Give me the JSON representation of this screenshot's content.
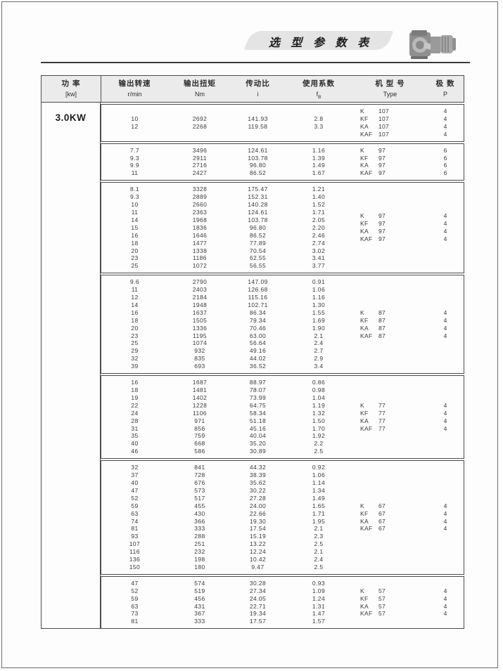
{
  "header": {
    "title": "选 型 参 数 表"
  },
  "table": {
    "power": {
      "label_zh": "功 率",
      "label_unit": "[kw]",
      "value": "3.0KW"
    },
    "header": {
      "cols": [
        {
          "zh": "输出转速",
          "en": "r/min"
        },
        {
          "zh": "输出扭矩",
          "en": "Nm"
        },
        {
          "zh": "传动比",
          "en": "i"
        },
        {
          "zh": "使用系数",
          "en": "f",
          "en_sub": "B"
        },
        {
          "zh": "机 型 号",
          "en": "Type"
        },
        {
          "zh": "极 数",
          "en": "P"
        }
      ]
    },
    "sections": [
      {
        "rows": [
          [
            "10",
            "2692",
            "141.93",
            "2.8"
          ],
          [
            "12",
            "2268",
            "119.58",
            "3.3"
          ]
        ],
        "types": [
          {
            "l": "K",
            "n": "107"
          },
          {
            "l": "KF",
            "n": "107"
          },
          {
            "l": "KA",
            "n": "107"
          },
          {
            "l": "KAF",
            "n": "107"
          }
        ],
        "poles": [
          "4",
          "4",
          "4",
          "4"
        ]
      },
      {
        "rows": [
          [
            "7.7",
            "3496",
            "124.61",
            "1.16"
          ],
          [
            "9.3",
            "2911",
            "103.78",
            "1.39"
          ],
          [
            "9.9",
            "2716",
            "96.80",
            "1.49"
          ],
          [
            "11",
            "2427",
            "86.52",
            "1.67"
          ]
        ],
        "types": [
          {
            "l": "K",
            "n": "97"
          },
          {
            "l": "KF",
            "n": "97"
          },
          {
            "l": "KA",
            "n": "97"
          },
          {
            "l": "KAF",
            "n": "97"
          }
        ],
        "poles": [
          "6",
          "6",
          "6",
          "6"
        ]
      },
      {
        "rows": [
          [
            "8.1",
            "3328",
            "175.47",
            "1.21"
          ],
          [
            "9.3",
            "2889",
            "152.31",
            "1.40"
          ],
          [
            "10",
            "2660",
            "140.28",
            "1.52"
          ],
          [
            "11",
            "2363",
            "124.61",
            "1.71"
          ],
          [
            "14",
            "1968",
            "103.78",
            "2.05"
          ],
          [
            "15",
            "1836",
            "96.80",
            "2.20"
          ],
          [
            "16",
            "1646",
            "86.52",
            "2.46"
          ],
          [
            "18",
            "1477",
            "77.89",
            "2.74"
          ],
          [
            "20",
            "1338",
            "70.54",
            "3.02"
          ],
          [
            "23",
            "1186",
            "62.55",
            "3.41"
          ],
          [
            "25",
            "1072",
            "56.55",
            "3.77"
          ]
        ],
        "types": [
          {
            "l": "K",
            "n": "97"
          },
          {
            "l": "KF",
            "n": "97"
          },
          {
            "l": "KA",
            "n": "97"
          },
          {
            "l": "KAF",
            "n": "97"
          }
        ],
        "poles": [
          "4",
          "4",
          "4",
          "4"
        ]
      },
      {
        "rows": [
          [
            "9.6",
            "2790",
            "147.09",
            "0.91"
          ],
          [
            "11",
            "2403",
            "126.68",
            "1.06"
          ],
          [
            "12",
            "2184",
            "115.16",
            "1.16"
          ],
          [
            "14",
            "1948",
            "102.71",
            "1.30"
          ],
          [
            "16",
            "1637",
            "86.34",
            "1.55"
          ],
          [
            "18",
            "1505",
            "79.34",
            "1.69"
          ],
          [
            "20",
            "1336",
            "70.46",
            "1.90"
          ],
          [
            "23",
            "1195",
            "63.00",
            "2.1"
          ],
          [
            "25",
            "1074",
            "56.64",
            "2.4"
          ],
          [
            "29",
            "932",
            "49.16",
            "2.7"
          ],
          [
            "32",
            "835",
            "44.02",
            "2.9"
          ],
          [
            "39",
            "693",
            "36.52",
            "3.4"
          ]
        ],
        "types": [
          {
            "l": "K",
            "n": "87"
          },
          {
            "l": "KF",
            "n": "87"
          },
          {
            "l": "KA",
            "n": "87"
          },
          {
            "l": "KAF",
            "n": "87"
          }
        ],
        "poles": [
          "4",
          "4",
          "4",
          "4"
        ]
      },
      {
        "rows": [
          [
            "16",
            "1687",
            "88.97",
            "0.86"
          ],
          [
            "18",
            "1481",
            "78.07",
            "0.98"
          ],
          [
            "19",
            "1402",
            "73.99",
            "1.04"
          ],
          [
            "22",
            "1228",
            "64.75",
            "1.19"
          ],
          [
            "24",
            "1106",
            "58.34",
            "1.32"
          ],
          [
            "28",
            "971",
            "51.18",
            "1.50"
          ],
          [
            "31",
            "856",
            "45.16",
            "1.70"
          ],
          [
            "35",
            "759",
            "40.04",
            "1.92"
          ],
          [
            "40",
            "668",
            "35.20",
            "2.2"
          ],
          [
            "46",
            "586",
            "30.89",
            "2.5"
          ]
        ],
        "types": [
          {
            "l": "K",
            "n": "77"
          },
          {
            "l": "KF",
            "n": "77"
          },
          {
            "l": "KA",
            "n": "77"
          },
          {
            "l": "KAF",
            "n": "77"
          }
        ],
        "poles": [
          "4",
          "4",
          "4",
          "4"
        ]
      },
      {
        "rows": [
          [
            "32",
            "841",
            "44.32",
            "0.92"
          ],
          [
            "37",
            "728",
            "38.39",
            "1.06"
          ],
          [
            "40",
            "676",
            "35.62",
            "1.14"
          ],
          [
            "47",
            "573",
            "30.22",
            "1.34"
          ],
          [
            "52",
            "517",
            "27.28",
            "1.49"
          ],
          [
            "59",
            "455",
            "24.00",
            "1.65"
          ],
          [
            "63",
            "430",
            "22.66",
            "1.71"
          ],
          [
            "74",
            "366",
            "19.30",
            "1.95"
          ],
          [
            "81",
            "333",
            "17.54",
            "2.1"
          ],
          [
            "93",
            "288",
            "15.19",
            "2.3"
          ],
          [
            "107",
            "251",
            "13.22",
            "2.5"
          ],
          [
            "116",
            "232",
            "12.24",
            "2.1"
          ],
          [
            "136",
            "198",
            "10.42",
            "2.4"
          ],
          [
            "150",
            "180",
            "9.47",
            "2.5"
          ]
        ],
        "types": [
          {
            "l": "K",
            "n": "67"
          },
          {
            "l": "KF",
            "n": "67"
          },
          {
            "l": "KA",
            "n": "67"
          },
          {
            "l": "KAF",
            "n": "67"
          }
        ],
        "poles": [
          "4",
          "4",
          "4",
          "4"
        ]
      },
      {
        "rows": [
          [
            "47",
            "574",
            "30.28",
            "0.93"
          ],
          [
            "52",
            "519",
            "27.34",
            "1.09"
          ],
          [
            "59",
            "456",
            "24.05",
            "1.24"
          ],
          [
            "63",
            "431",
            "22.71",
            "1.31"
          ],
          [
            "73",
            "367",
            "19.34",
            "1.47"
          ],
          [
            "81",
            "333",
            "17.57",
            "1.57"
          ]
        ],
        "types": [
          {
            "l": "K",
            "n": "57"
          },
          {
            "l": "KF",
            "n": "57"
          },
          {
            "l": "KA",
            "n": "57"
          },
          {
            "l": "KAF",
            "n": "57"
          }
        ],
        "poles": [
          "4",
          "4",
          "4",
          "4"
        ]
      }
    ]
  }
}
